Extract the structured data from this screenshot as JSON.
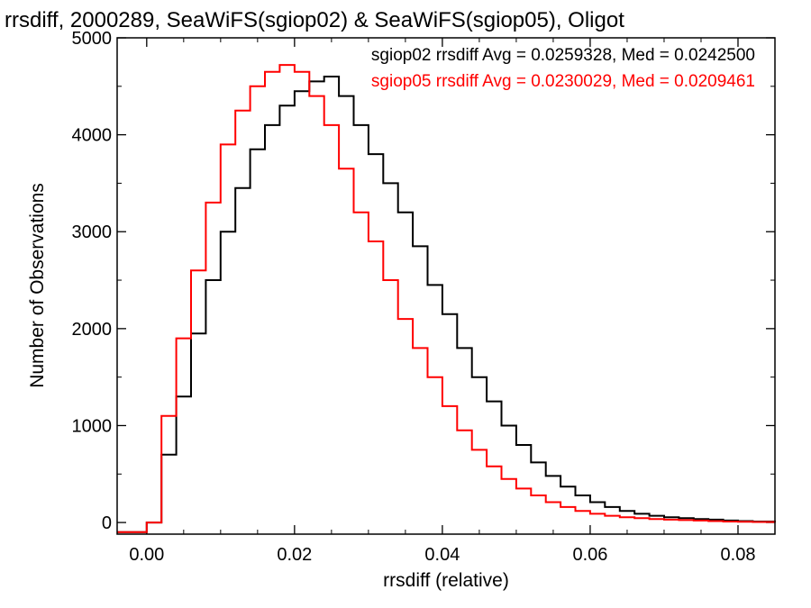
{
  "chart_data": {
    "type": "step-histogram",
    "title": "rrsdiff, 2000289, SeaWiFS(sgiop02) & SeaWiFS(sgiop05), Oligot",
    "xlabel": "rrsdiff (relative)",
    "ylabel": "Number of Observations",
    "xlim": [
      -0.004,
      0.085
    ],
    "ylim": [
      -120,
      5000
    ],
    "xticks": [
      0.0,
      0.02,
      0.04,
      0.06,
      0.08
    ],
    "xtick_labels": [
      "0.00",
      "0.02",
      "0.04",
      "0.06",
      "0.08"
    ],
    "yticks": [
      0,
      1000,
      2000,
      3000,
      4000,
      5000
    ],
    "ytick_labels": [
      "0",
      "1000",
      "2000",
      "3000",
      "4000",
      "5000"
    ],
    "grid": false,
    "legend_placement": "top-right",
    "series": [
      {
        "name": "sgiop02 rrsdiff",
        "legend_text": "sgiop02 rrsdiff Avg = 0.0259328, Med = 0.0242500",
        "color": "#000000",
        "x": [
          -0.004,
          0.0,
          0.002,
          0.004,
          0.006,
          0.008,
          0.01,
          0.012,
          0.014,
          0.016,
          0.018,
          0.02,
          0.022,
          0.024,
          0.026,
          0.028,
          0.03,
          0.032,
          0.034,
          0.036,
          0.038,
          0.04,
          0.042,
          0.044,
          0.046,
          0.048,
          0.05,
          0.052,
          0.054,
          0.056,
          0.058,
          0.06,
          0.062,
          0.064,
          0.066,
          0.068,
          0.07,
          0.072,
          0.074,
          0.076,
          0.078,
          0.08,
          0.082,
          0.085
        ],
        "y": [
          -100,
          0,
          700,
          1300,
          1950,
          2500,
          3000,
          3450,
          3850,
          4100,
          4300,
          4450,
          4550,
          4600,
          4400,
          4100,
          3800,
          3500,
          3200,
          2850,
          2450,
          2150,
          1800,
          1500,
          1250,
          1000,
          800,
          620,
          480,
          370,
          280,
          210,
          160,
          120,
          90,
          70,
          55,
          45,
          35,
          30,
          20,
          15,
          10,
          0
        ]
      },
      {
        "name": "sgiop05 rrsdiff",
        "legend_text": "sgiop05 rrsdiff Avg = 0.0230029, Med = 0.0209461",
        "color": "#ff0000",
        "x": [
          -0.004,
          0.0,
          0.002,
          0.004,
          0.006,
          0.008,
          0.01,
          0.012,
          0.014,
          0.016,
          0.018,
          0.02,
          0.022,
          0.024,
          0.026,
          0.028,
          0.03,
          0.032,
          0.034,
          0.036,
          0.038,
          0.04,
          0.042,
          0.044,
          0.046,
          0.048,
          0.05,
          0.052,
          0.054,
          0.056,
          0.058,
          0.06,
          0.062,
          0.064,
          0.066,
          0.068,
          0.07,
          0.072,
          0.074,
          0.076,
          0.078,
          0.08,
          0.082,
          0.085
        ],
        "y": [
          -100,
          0,
          1100,
          1900,
          2600,
          3300,
          3900,
          4250,
          4500,
          4650,
          4720,
          4650,
          4400,
          4100,
          3650,
          3200,
          2900,
          2500,
          2100,
          1800,
          1500,
          1200,
          950,
          750,
          580,
          450,
          350,
          280,
          210,
          160,
          120,
          90,
          70,
          55,
          45,
          35,
          30,
          25,
          20,
          15,
          10,
          8,
          5,
          0
        ]
      }
    ]
  }
}
